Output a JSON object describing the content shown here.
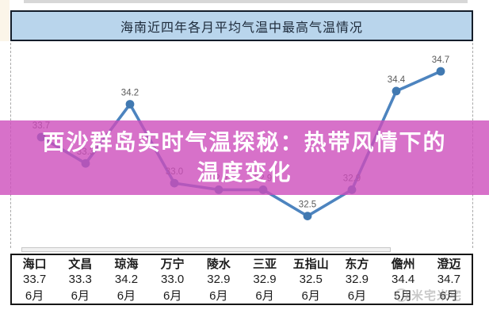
{
  "title_bar": {
    "text": "海南近四年各月平均气温中最高气温情况"
  },
  "overlay": {
    "line1": "西沙群岛实时气温探秘：热带风情下的",
    "line2": "温度变化",
    "band_color": "rgba(205,78,188,0.8)",
    "text_color": "#ffffff"
  },
  "chart_data": {
    "type": "line",
    "title": "海南近四年各月平均气温中最高气温情况",
    "categories": [
      "海口",
      "文昌",
      "琼海",
      "万宁",
      "陵水",
      "三亚",
      "五指山",
      "东方",
      "儋州",
      "澄迈"
    ],
    "values": [
      33.7,
      33.3,
      34.2,
      33.0,
      32.9,
      32.9,
      32.5,
      32.9,
      34.4,
      34.7
    ],
    "data_labels": [
      33.7,
      33.3,
      34.2,
      33.0,
      32.9,
      32.9,
      32.5,
      32.9,
      34.4,
      34.7
    ],
    "ylim": [
      32.0,
      35.1
    ],
    "grid": false,
    "legend": false,
    "line_color": "#4d84bf",
    "marker_color": "#4179b1",
    "label_color": "#595959"
  },
  "table": {
    "header_row": [
      "海口",
      "文昌",
      "琼海",
      "万宁",
      "陵水",
      "三亚",
      "五指山",
      "东方",
      "儋州",
      "澄迈"
    ],
    "value_row": [
      "33.7",
      "33.3",
      "34.2",
      "33.0",
      "32.9",
      "32.9",
      "32.5",
      "32.9",
      "34.4",
      "34.7"
    ],
    "month_row": [
      "6月",
      "6月",
      "6月",
      "6月",
      "6月",
      "6月",
      "6月",
      "6月",
      "5月",
      "6月"
    ]
  },
  "watermark": {
    "text": "米宅米宅"
  }
}
